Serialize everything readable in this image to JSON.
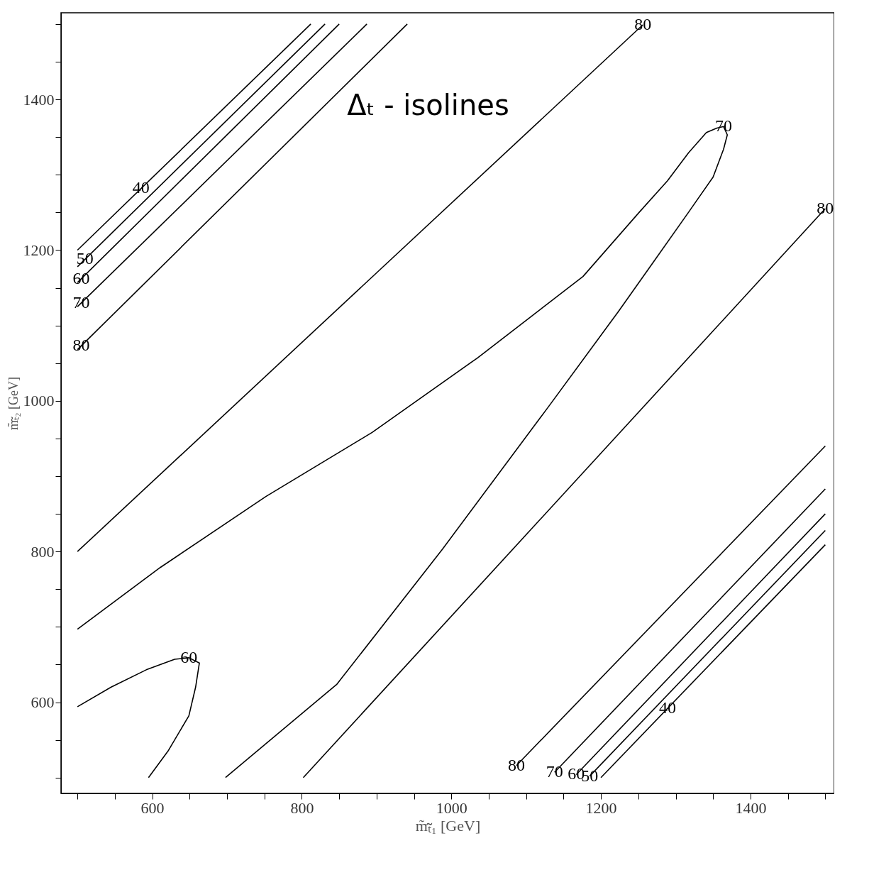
{
  "chart_data": {
    "type": "line",
    "xlabel": "m̃ₜ̃₁ [GeV]",
    "ylabel": "m̃ₜ̃₂ [GeV]",
    "xlim": [
      478,
      1512
    ],
    "ylim": [
      479,
      1515
    ],
    "xticks": [
      {
        "value": 500,
        "label": null
      },
      {
        "value": 550,
        "label": null
      },
      600,
      {
        "value": 650,
        "label": null
      },
      {
        "value": 700,
        "label": null
      },
      {
        "value": 750,
        "label": null
      },
      800,
      {
        "value": 850,
        "label": null
      },
      {
        "value": 900,
        "label": null
      },
      {
        "value": 950,
        "label": null
      },
      1000,
      {
        "value": 1050,
        "label": null
      },
      {
        "value": 1100,
        "label": null
      },
      {
        "value": 1150,
        "label": null
      },
      1200,
      {
        "value": 1250,
        "label": null
      },
      {
        "value": 1300,
        "label": null
      },
      {
        "value": 1350,
        "label": null
      },
      1400,
      {
        "value": 1450,
        "label": null
      },
      {
        "value": 1500,
        "label": null
      }
    ],
    "yticks": [
      {
        "value": 500,
        "label": null
      },
      {
        "value": 550,
        "label": null
      },
      600,
      {
        "value": 650,
        "label": null
      },
      {
        "value": 700,
        "label": null
      },
      {
        "value": 750,
        "label": null
      },
      800,
      {
        "value": 850,
        "label": null
      },
      {
        "value": 900,
        "label": null
      },
      {
        "value": 950,
        "label": null
      },
      1000,
      {
        "value": 1050,
        "label": null
      },
      {
        "value": 1100,
        "label": null
      },
      {
        "value": 1150,
        "label": null
      },
      1200,
      {
        "value": 1250,
        "label": null
      },
      {
        "value": 1300,
        "label": null
      },
      {
        "value": 1350,
        "label": null
      },
      1400,
      {
        "value": 1450,
        "label": null
      },
      {
        "value": 1500,
        "label": null
      }
    ],
    "grid": false,
    "series": [
      {
        "color": "#000000",
        "x": [
          500,
          812
        ],
        "values": [
          1200,
          1500
        ]
      },
      {
        "color": "#000000",
        "x": [
          500,
          831
        ],
        "values": [
          1178,
          1500
        ]
      },
      {
        "color": "#000000",
        "x": [
          500,
          850
        ],
        "values": [
          1157,
          1500
        ]
      },
      {
        "color": "#000000",
        "x": [
          500,
          887
        ],
        "values": [
          1125,
          1500
        ]
      },
      {
        "color": "#000000",
        "x": [
          500,
          941
        ],
        "values": [
          1068,
          1500
        ]
      },
      {
        "color": "#000000",
        "x": [
          500,
          1256
        ],
        "values": [
          800,
          1499
        ]
      },
      {
        "color": "#000000",
        "x": [
          500,
          611,
          752,
          894,
          1035,
          1176,
          1251,
          1289,
          1317,
          1341,
          1355,
          1364,
          1369,
          1364,
          1350,
          1317,
          1270,
          1223,
          1129,
          988,
          847,
          698
        ],
        "values": [
          697,
          779,
          873,
          958,
          1057,
          1165,
          1250,
          1292,
          1329,
          1356,
          1362,
          1364,
          1353,
          1334,
          1297,
          1250,
          1184,
          1118,
          991,
          803,
          624,
          500
        ]
      },
      {
        "color": "#000000",
        "x": [
          500,
          545,
          592,
          630,
          649,
          663,
          658,
          649,
          621,
          595
        ],
        "values": [
          594,
          620,
          643,
          657,
          659,
          652,
          620,
          582,
          535,
          500
        ]
      },
      {
        "color": "#000000",
        "x": [
          802,
          1500
        ],
        "values": [
          500,
          1255
        ]
      },
      {
        "color": "#000000",
        "x": [
          1087,
          1500
        ],
        "values": [
          516,
          940
        ]
      },
      {
        "color": "#000000",
        "x": [
          1138,
          1500
        ],
        "values": [
          507,
          883
        ]
      },
      {
        "color": "#000000",
        "x": [
          1167,
          1500
        ],
        "values": [
          504,
          850
        ]
      },
      {
        "color": "#000000",
        "x": [
          1185,
          1500
        ],
        "values": [
          502,
          828
        ]
      },
      {
        "color": "#000000",
        "x": [
          1200,
          1500
        ],
        "values": [
          500,
          809
        ]
      }
    ],
    "annotations": [
      "Δₜ  - isolines",
      {
        "text": "40",
        "x": 585,
        "y": 1282
      },
      {
        "text": "50",
        "x": 510,
        "y": 1188
      },
      {
        "text": "60",
        "x": 505,
        "y": 1162
      },
      {
        "text": "70",
        "x": 505,
        "y": 1130
      },
      {
        "text": "80",
        "x": 505,
        "y": 1073
      },
      {
        "text": "80",
        "x": 1256,
        "y": 1499
      },
      {
        "text": "70",
        "x": 1364,
        "y": 1364
      },
      {
        "text": "80",
        "x": 1500,
        "y": 1255
      },
      {
        "text": "60",
        "x": 649,
        "y": 659
      },
      {
        "text": "80",
        "x": 1087,
        "y": 516
      },
      {
        "text": "70",
        "x": 1138,
        "y": 507
      },
      {
        "text": "60",
        "x": 1167,
        "y": 504
      },
      {
        "text": "50",
        "x": 1185,
        "y": 502
      },
      {
        "text": "40",
        "x": 1289,
        "y": 592
      }
    ]
  }
}
